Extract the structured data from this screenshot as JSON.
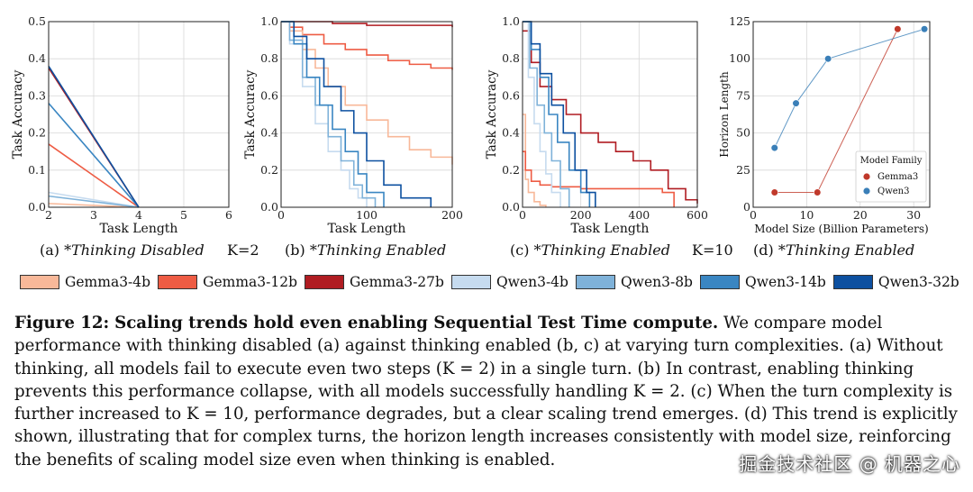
{
  "colors": {
    "Gemma3-4b": "#f8b899",
    "Gemma3-12b": "#ee5c44",
    "Gemma3-27b": "#b01c22",
    "Qwen3-4b": "#c6dbef",
    "Qwen3-8b": "#7fb2d9",
    "Qwen3-14b": "#3a86c2",
    "Qwen3-32b": "#0d50a0"
  },
  "subcaptions": {
    "a": {
      "label": "(a)",
      "text": "*Thinking Disabled"
    },
    "b": {
      "label": "(b)",
      "text": "*Thinking Enabled"
    },
    "c": {
      "label": "(c)",
      "text": "*Thinking Enabled"
    },
    "d": {
      "label": "(d)",
      "text": "*Thinking Enabled"
    }
  },
  "k_labels": {
    "k2": "K=2",
    "k10": "K=10"
  },
  "legend": [
    "Gemma3-4b",
    "Gemma3-12b",
    "Gemma3-27b",
    "Qwen3-4b",
    "Qwen3-8b",
    "Qwen3-14b",
    "Qwen3-32b"
  ],
  "caption": {
    "label": "Figure 12:",
    "title": "Scaling trends hold even enabling Sequential Test Time compute.",
    "body": " We compare model performance with thinking disabled (a) against thinking enabled (b, c) at varying turn complexities. (a) Without thinking, all models fail to execute even two steps (K = 2) in a single turn. (b) In contrast, enabling thinking prevents this performance collapse, with all models successfully handling K = 2. (c) When the turn complexity is further increased to K = 10, performance degrades, but a clear scaling trend emerges. (d) This trend is explicitly shown, illustrating that for complex turns, the horizon length increases consistently with model size, reinforcing the benefits of scaling model size even when thinking is enabled."
  },
  "watermark": "掘金技术社区 @ 机器之心",
  "chart_data": [
    {
      "id": "a",
      "type": "line",
      "xlabel": "Task Length",
      "ylabel": "Task Accuracy",
      "xlim": [
        2,
        6
      ],
      "ylim": [
        0,
        0.5
      ],
      "xticks": [
        2,
        3,
        4,
        5,
        6
      ],
      "yticks": [
        0.0,
        0.1,
        0.2,
        0.3,
        0.4,
        0.5
      ],
      "tick_labels_y": [
        "0.0",
        "0.1",
        "0.2",
        "0.3",
        "0.4",
        "0.5"
      ],
      "series": [
        {
          "name": "Gemma3-4b",
          "x": [
            2,
            4
          ],
          "y": [
            0.01,
            0.0
          ]
        },
        {
          "name": "Gemma3-12b",
          "x": [
            2,
            4
          ],
          "y": [
            0.17,
            0.0
          ]
        },
        {
          "name": "Gemma3-27b",
          "x": [
            2,
            4
          ],
          "y": [
            0.375,
            0.0
          ]
        },
        {
          "name": "Qwen3-4b",
          "x": [
            2,
            4
          ],
          "y": [
            0.04,
            0.0
          ]
        },
        {
          "name": "Qwen3-8b",
          "x": [
            2,
            4
          ],
          "y": [
            0.03,
            0.0
          ]
        },
        {
          "name": "Qwen3-14b",
          "x": [
            2,
            4
          ],
          "y": [
            0.28,
            0.0
          ]
        },
        {
          "name": "Qwen3-32b",
          "x": [
            2,
            4
          ],
          "y": [
            0.38,
            0.0
          ]
        }
      ]
    },
    {
      "id": "b",
      "type": "line",
      "xlabel": "Task Length",
      "ylabel": "Task Accuracy",
      "xlim": [
        0,
        200
      ],
      "ylim": [
        0,
        1.0
      ],
      "xticks": [
        0,
        100,
        200
      ],
      "yticks": [
        0.0,
        0.2,
        0.4,
        0.6,
        0.8,
        1.0
      ],
      "tick_labels_y": [
        "0.0",
        "0.2",
        "0.4",
        "0.6",
        "0.8",
        "1.0"
      ],
      "series": [
        {
          "name": "Gemma3-27b",
          "x": [
            0,
            25,
            60,
            100,
            200
          ],
          "y": [
            1.0,
            1.0,
            0.99,
            0.98,
            0.97
          ]
        },
        {
          "name": "Gemma3-12b",
          "x": [
            0,
            10,
            25,
            50,
            75,
            100,
            125,
            150,
            175,
            200
          ],
          "y": [
            1.0,
            0.97,
            0.93,
            0.88,
            0.85,
            0.82,
            0.79,
            0.77,
            0.75,
            0.74
          ]
        },
        {
          "name": "Gemma3-4b",
          "x": [
            0,
            10,
            25,
            40,
            55,
            75,
            100,
            125,
            150,
            175,
            200
          ],
          "y": [
            1.0,
            0.95,
            0.85,
            0.75,
            0.65,
            0.55,
            0.47,
            0.38,
            0.31,
            0.27,
            0.23
          ]
        },
        {
          "name": "Qwen3-4b",
          "x": [
            0,
            10,
            25,
            40,
            55,
            70,
            80,
            90,
            100
          ],
          "y": [
            1.0,
            0.88,
            0.65,
            0.45,
            0.3,
            0.2,
            0.1,
            0.05,
            0.0
          ]
        },
        {
          "name": "Qwen3-8b",
          "x": [
            0,
            10,
            25,
            40,
            55,
            70,
            85,
            95,
            110
          ],
          "y": [
            1.0,
            0.9,
            0.7,
            0.55,
            0.38,
            0.25,
            0.12,
            0.05,
            0.0
          ]
        },
        {
          "name": "Qwen3-14b",
          "x": [
            0,
            15,
            30,
            45,
            60,
            75,
            90,
            100,
            120
          ],
          "y": [
            1.0,
            0.88,
            0.7,
            0.55,
            0.42,
            0.3,
            0.18,
            0.08,
            0.0
          ]
        },
        {
          "name": "Qwen3-32b",
          "x": [
            0,
            15,
            30,
            50,
            70,
            85,
            100,
            120,
            140,
            165,
            175
          ],
          "y": [
            1.0,
            0.92,
            0.8,
            0.65,
            0.52,
            0.4,
            0.25,
            0.12,
            0.05,
            0.05,
            0.0
          ]
        }
      ]
    },
    {
      "id": "c",
      "type": "line",
      "xlabel": "Task Length",
      "ylabel": "Task Accuracy",
      "xlim": [
        0,
        600
      ],
      "ylim": [
        0,
        1.0
      ],
      "xticks": [
        0,
        200,
        400,
        600
      ],
      "yticks": [
        0.0,
        0.2,
        0.4,
        0.6,
        0.8,
        1.0
      ],
      "tick_labels_y": [
        "0.0",
        "0.2",
        "0.4",
        "0.6",
        "0.8",
        "1.0"
      ],
      "series": [
        {
          "name": "Gemma3-4b",
          "x": [
            0,
            10,
            20,
            40,
            60,
            80
          ],
          "y": [
            0.5,
            0.15,
            0.08,
            0.03,
            0.01,
            0.0
          ]
        },
        {
          "name": "Gemma3-12b",
          "x": [
            0,
            10,
            30,
            60,
            100,
            200,
            300,
            400,
            480,
            520
          ],
          "y": [
            0.3,
            0.2,
            0.14,
            0.12,
            0.11,
            0.1,
            0.1,
            0.1,
            0.08,
            0.0
          ]
        },
        {
          "name": "Gemma3-27b",
          "x": [
            0,
            30,
            60,
            100,
            150,
            200,
            260,
            320,
            380,
            440,
            500,
            560,
            600
          ],
          "y": [
            0.95,
            0.78,
            0.65,
            0.58,
            0.5,
            0.4,
            0.35,
            0.3,
            0.25,
            0.2,
            0.1,
            0.04,
            0.02
          ]
        },
        {
          "name": "Qwen3-4b",
          "x": [
            0,
            20,
            40,
            60,
            80,
            100,
            130
          ],
          "y": [
            1.0,
            0.7,
            0.45,
            0.3,
            0.18,
            0.08,
            0.0
          ]
        },
        {
          "name": "Qwen3-8b",
          "x": [
            0,
            25,
            50,
            75,
            100,
            130,
            160
          ],
          "y": [
            1.0,
            0.75,
            0.55,
            0.4,
            0.25,
            0.1,
            0.0
          ]
        },
        {
          "name": "Qwen3-14b",
          "x": [
            0,
            30,
            60,
            90,
            120,
            160,
            200,
            230
          ],
          "y": [
            1.0,
            0.85,
            0.7,
            0.5,
            0.35,
            0.2,
            0.08,
            0.0
          ]
        },
        {
          "name": "Qwen3-32b",
          "x": [
            0,
            30,
            60,
            100,
            140,
            180,
            220,
            250
          ],
          "y": [
            1.0,
            0.88,
            0.72,
            0.55,
            0.4,
            0.2,
            0.08,
            0.0
          ]
        }
      ]
    },
    {
      "id": "d",
      "type": "scatter",
      "xlabel": "Model Size (Billion Parameters)",
      "ylabel": "Horizon Length",
      "xlim": [
        0,
        33
      ],
      "ylim": [
        0,
        125
      ],
      "xticks": [
        0,
        10,
        20,
        30
      ],
      "yticks": [
        0,
        25,
        50,
        75,
        100,
        125
      ],
      "tick_labels_y": [
        "0",
        "25",
        "50",
        "75",
        "100",
        "125"
      ],
      "legend_title": "Model Family",
      "legend_position": "lower-right",
      "series": [
        {
          "name": "Gemma3",
          "x": [
            4,
            12,
            27
          ],
          "y": [
            10,
            10,
            120
          ]
        },
        {
          "name": "Qwen3",
          "x": [
            4,
            8,
            14,
            32
          ],
          "y": [
            40,
            70,
            100,
            120
          ]
        }
      ]
    }
  ]
}
